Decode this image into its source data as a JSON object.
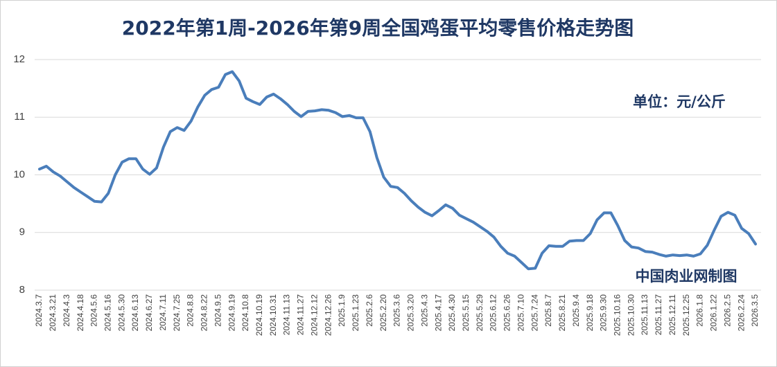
{
  "chart_data": {
    "type": "line",
    "title": "2022年第1周-2026年第9周全国鸡蛋平均零售价格走势图",
    "annotations": [
      "单位：元/公斤",
      "中国肉业网制图"
    ],
    "categories": [
      "2024.3.7",
      null,
      "2024.3.21",
      null,
      "2024.4.3",
      null,
      "2024.4.18",
      null,
      "2024.5.6",
      null,
      "2024.5.16",
      null,
      "2024.5.30",
      null,
      "2024.6.13",
      null,
      "2024.6.27",
      null,
      "2024.7.11",
      null,
      "2024.7.25",
      null,
      "2024.8.8",
      null,
      "2024.8.22",
      null,
      "2024.9.5",
      null,
      "2024.9.19",
      null,
      "2024.10.8",
      null,
      "2024.10.19",
      null,
      "2024.10.31",
      null,
      "2024.11.13",
      null,
      "2024.11.27",
      null,
      "2024.12.12",
      null,
      "2024.12.26",
      null,
      "2025.1.9",
      null,
      "2025.1.23",
      null,
      "2025.2.6",
      null,
      "2025.2.20",
      null,
      "2025.3.6",
      null,
      "2025.3.20",
      null,
      "2025.4.3",
      null,
      "2025.4.17",
      null,
      "2025.4.30",
      null,
      "2025.5.15",
      null,
      "2025.5.29",
      null,
      "2025.6.12",
      null,
      "2025.6.26",
      null,
      "2025.7.10",
      null,
      "2025.7.24",
      null,
      "2025.8.7",
      null,
      "2025.8.21",
      null,
      "2025.9.4",
      null,
      "2025.9.18",
      null,
      "2025.9.30",
      null,
      "2025.10.16",
      null,
      "2025.10.30",
      null,
      "2025.11.13",
      null,
      "2025.11.27",
      null,
      "2025.12.11",
      null,
      "2025.12.25",
      null,
      "2026.1.8",
      null,
      "2026.1.22",
      null,
      "2026.2.5",
      null,
      "2026.2.24",
      null,
      "2026.3.5"
    ],
    "series": [
      {
        "color": "#4a7ebb",
        "values": [
          10.1,
          10.15,
          10.05,
          9.98,
          9.88,
          9.78,
          9.7,
          9.62,
          9.54,
          9.53,
          9.68,
          10.0,
          10.22,
          10.28,
          10.28,
          10.1,
          10.01,
          10.12,
          10.48,
          10.75,
          10.82,
          10.77,
          10.93,
          11.18,
          11.38,
          11.48,
          11.52,
          11.74,
          11.79,
          11.63,
          11.33,
          11.27,
          11.22,
          11.35,
          11.4,
          11.32,
          11.22,
          11.1,
          11.01,
          11.1,
          11.11,
          11.13,
          11.12,
          11.08,
          11.01,
          11.03,
          10.99,
          10.99,
          10.75,
          10.3,
          9.96,
          9.8,
          9.78,
          9.68,
          9.55,
          9.44,
          9.35,
          9.29,
          9.38,
          9.48,
          9.42,
          9.3,
          9.24,
          9.18,
          9.1,
          9.02,
          8.92,
          8.76,
          8.64,
          8.59,
          8.48,
          8.37,
          8.38,
          8.64,
          8.77,
          8.76,
          8.76,
          8.85,
          8.86,
          8.86,
          8.98,
          9.22,
          9.34,
          9.34,
          9.12,
          8.86,
          8.75,
          8.73,
          8.67,
          8.66,
          8.62,
          8.59,
          8.61,
          8.6,
          8.61,
          8.59,
          8.63,
          8.78,
          9.04,
          9.28,
          9.35,
          9.3,
          9.07,
          8.98,
          8.8
        ]
      }
    ],
    "ylim": [
      8,
      12
    ],
    "yticks": [
      8,
      9,
      10,
      11,
      12
    ],
    "grid": true
  }
}
